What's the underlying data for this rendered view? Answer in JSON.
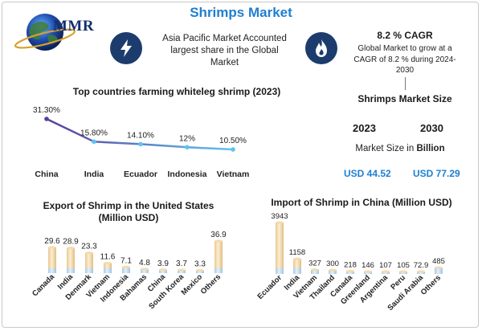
{
  "page": {
    "title": "Shrimps Market"
  },
  "logo": {
    "text": "MMR"
  },
  "info_asia": {
    "icon": "lightning-bolt-icon",
    "text": "Asia Pacific Market Accounted largest share in the Global Market"
  },
  "cagr": {
    "icon": "flame-icon",
    "title": "8.2 % CAGR",
    "description": "Global Market to grow at a CAGR of 8.2 % during 2024-2030"
  },
  "market_size": {
    "title": "Shrimps Market Size",
    "year_start": "2023",
    "year_end": "2030",
    "label_prefix": "Market Size in ",
    "label_bold": "Billion",
    "value_start": "USD 44.52",
    "value_end": "USD 77.29"
  },
  "colors": {
    "accent": "#1f7fd0",
    "line_start": "#5a3e9a",
    "line_end": "#5ec4ee",
    "bar_light": "#f6e4c5",
    "bar_blue": "#cde3f6"
  },
  "chart_data": [
    {
      "type": "line",
      "title": "Top countries farming whiteleg shrimp (2023)",
      "categories": [
        "China",
        "India",
        "Ecuador",
        "Indonesia",
        "Vietnam"
      ],
      "values": [
        31.3,
        15.8,
        14.1,
        12,
        10.5
      ],
      "value_labels": [
        "31.30%",
        "15.80%",
        "14.10%",
        "12%",
        "10.50%"
      ],
      "grid": false
    },
    {
      "type": "bar",
      "title": "Export of Shrimp in the United States (Million USD)",
      "categories": [
        "Canada",
        "India",
        "Denmark",
        "Vietnam",
        "Indonesia",
        "Bahamas",
        "China",
        "South Korea",
        "Mexico",
        "Others"
      ],
      "values": [
        29.6,
        28.9,
        23.3,
        11.6,
        7.1,
        4.8,
        3.9,
        3.7,
        3.3,
        36.9
      ],
      "value_labels": [
        "29.6",
        "28.9",
        "23.3",
        "11.6",
        "7.1",
        "4.8",
        "3.9",
        "3.7",
        "3.3",
        "36.9"
      ],
      "ylim": [
        0,
        40
      ],
      "grid": false
    },
    {
      "type": "bar",
      "title": "Import of Shrimp in China (Million USD)",
      "categories": [
        "Ecuador",
        "India",
        "Vietnam",
        "Thailand",
        "Canada",
        "Greenland",
        "Argentina",
        "Peru",
        "Saudi Arabia",
        "Others"
      ],
      "values": [
        3943,
        1158,
        327,
        300,
        218,
        146,
        107,
        105,
        72.9,
        485
      ],
      "value_labels": [
        "3943",
        "1158",
        "327",
        "300",
        "218",
        "146",
        "107",
        "105",
        "72.9",
        "485"
      ],
      "ylim": [
        0,
        4000
      ],
      "grid": false
    }
  ]
}
